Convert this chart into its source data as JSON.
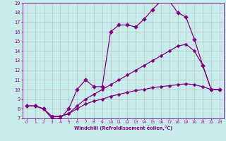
{
  "xlabel": "Windchill (Refroidissement éolien,°C)",
  "background_color": "#c8ecec",
  "grid_color": "#b0b0b0",
  "line_color": "#800080",
  "xlim": [
    -0.5,
    23.5
  ],
  "ylim": [
    7,
    19
  ],
  "xticks": [
    0,
    1,
    2,
    3,
    4,
    5,
    6,
    7,
    8,
    9,
    10,
    11,
    12,
    13,
    14,
    15,
    16,
    17,
    18,
    19,
    20,
    21,
    22,
    23
  ],
  "yticks": [
    7,
    8,
    9,
    10,
    11,
    12,
    13,
    14,
    15,
    16,
    17,
    18,
    19
  ],
  "series": [
    {
      "x": [
        0,
        1,
        2,
        3,
        4,
        5,
        6,
        7,
        8,
        9,
        10,
        11,
        12,
        13,
        14,
        15,
        16,
        17,
        18,
        19,
        20,
        21,
        22,
        23
      ],
      "y": [
        8.3,
        8.3,
        8.0,
        7.0,
        7.0,
        8.0,
        10.0,
        11.0,
        10.3,
        10.3,
        16.0,
        16.7,
        16.7,
        16.5,
        17.3,
        18.3,
        19.2,
        19.2,
        18.0,
        17.5,
        15.2,
        12.5,
        10.0,
        10.0
      ],
      "marker": "D",
      "markersize": 3.0,
      "linewidth": 0.9
    },
    {
      "x": [
        0,
        1,
        2,
        3,
        4,
        5,
        6,
        7,
        8,
        9,
        10,
        11,
        12,
        13,
        14,
        15,
        16,
        17,
        18,
        19,
        20,
        21,
        22,
        23
      ],
      "y": [
        8.3,
        8.3,
        8.0,
        7.2,
        7.2,
        7.5,
        8.3,
        9.0,
        9.5,
        10.0,
        10.5,
        11.0,
        11.5,
        12.0,
        12.5,
        13.0,
        13.5,
        14.0,
        14.5,
        14.7,
        14.0,
        12.5,
        10.0,
        10.0
      ],
      "marker": "D",
      "markersize": 2.5,
      "linewidth": 0.9
    },
    {
      "x": [
        0,
        1,
        2,
        3,
        4,
        5,
        6,
        7,
        8,
        9,
        10,
        11,
        12,
        13,
        14,
        15,
        16,
        17,
        18,
        19,
        20,
        21,
        22,
        23
      ],
      "y": [
        8.3,
        8.3,
        8.0,
        7.2,
        7.2,
        7.5,
        8.0,
        8.5,
        8.8,
        9.0,
        9.3,
        9.5,
        9.7,
        9.9,
        10.0,
        10.2,
        10.3,
        10.4,
        10.5,
        10.6,
        10.5,
        10.3,
        10.0,
        10.0
      ],
      "marker": "D",
      "markersize": 2.5,
      "linewidth": 0.9
    }
  ]
}
